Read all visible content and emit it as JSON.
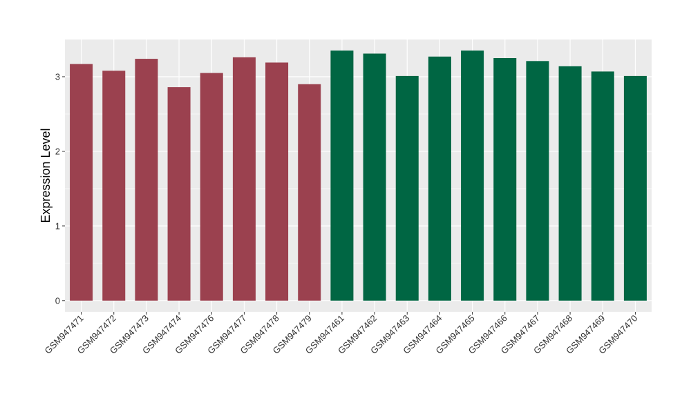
{
  "chart_data": {
    "type": "bar",
    "title": "",
    "xlabel": "",
    "ylabel": "Expression Level",
    "ylim": [
      -0.15,
      3.5
    ],
    "yticks": [
      0,
      1,
      2,
      3
    ],
    "grid": true,
    "legend": "none",
    "categories": [
      "GSM947471",
      "GSM947472",
      "GSM947473",
      "GSM947474",
      "GSM947476",
      "GSM947477",
      "GSM947478",
      "GSM947479",
      "GSM947461",
      "GSM947462",
      "GSM947463",
      "GSM947464",
      "GSM947465",
      "GSM947466",
      "GSM947467",
      "GSM947468",
      "GSM947469",
      "GSM947470"
    ],
    "values": [
      3.17,
      3.08,
      3.24,
      2.86,
      3.05,
      3.26,
      3.19,
      2.9,
      3.35,
      3.31,
      3.01,
      3.27,
      3.35,
      3.25,
      3.21,
      3.14,
      3.07,
      3.01
    ],
    "colors": [
      "#9b414f",
      "#9b414f",
      "#9b414f",
      "#9b414f",
      "#9b414f",
      "#9b414f",
      "#9b414f",
      "#9b414f",
      "#006643",
      "#006643",
      "#006643",
      "#006643",
      "#006643",
      "#006643",
      "#006643",
      "#006643",
      "#006643",
      "#006643"
    ],
    "panel_background": "#ebebeb",
    "gridline_color": "#ffffff"
  }
}
